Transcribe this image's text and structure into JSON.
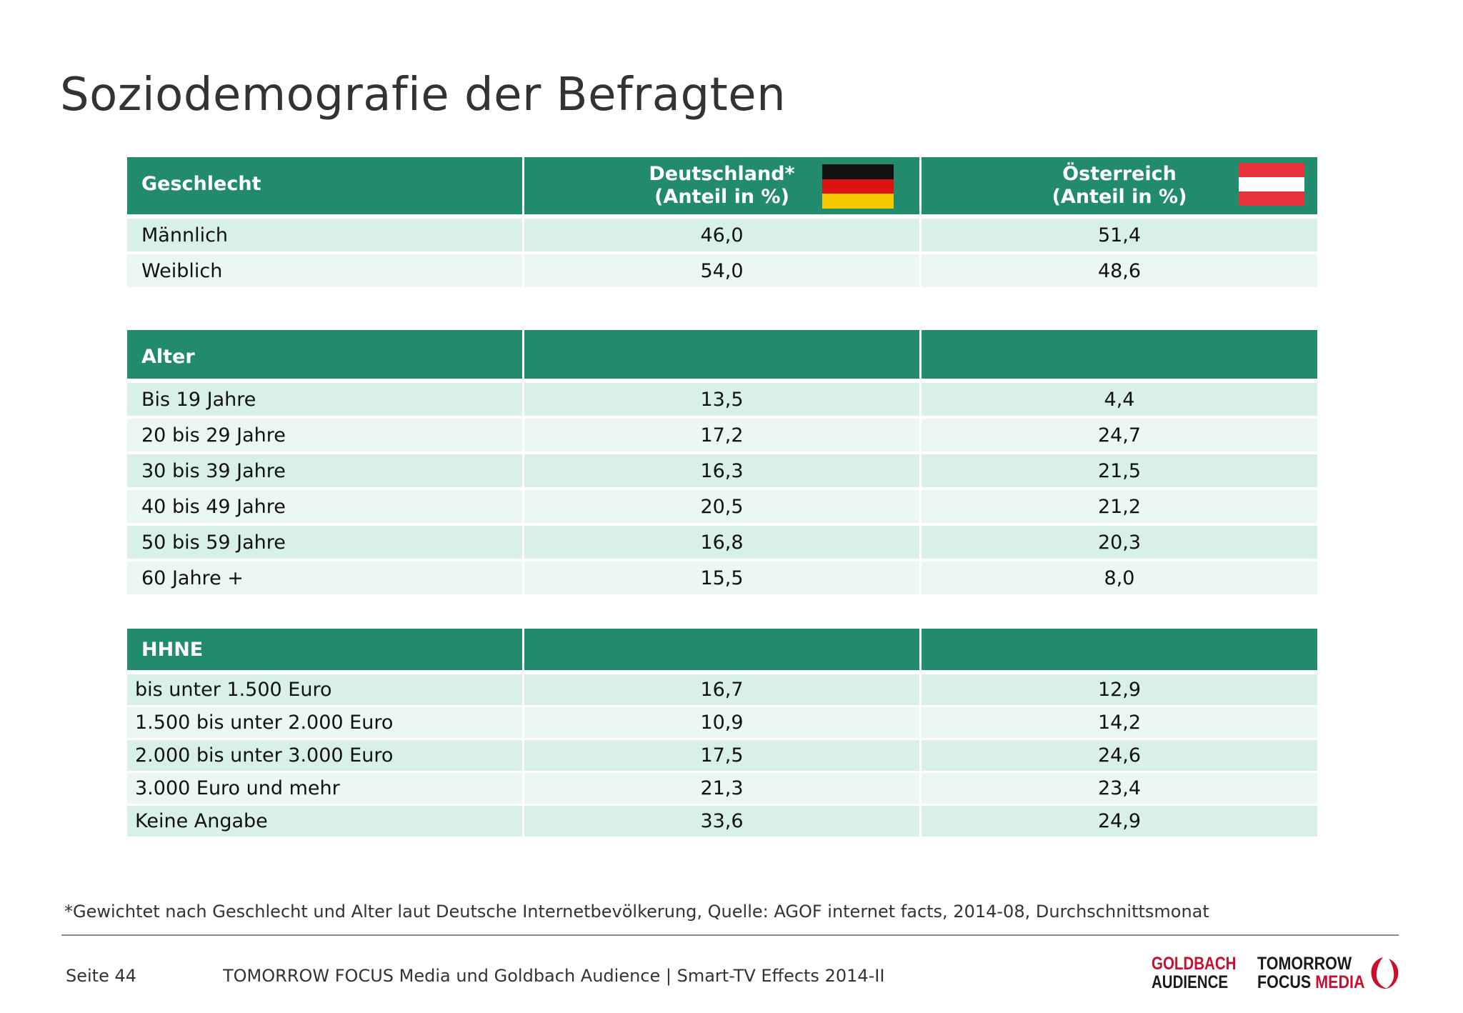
{
  "title": "Soziodemografie der Befragten",
  "colors": {
    "header": "#228b6e",
    "row_a": "#d9f0e6",
    "row_b": "#ebf7f2",
    "accent_red": "#c8102e"
  },
  "columns": {
    "de_line1": "Deutschland*",
    "de_line2": "(Anteil in %)",
    "at_line1": "Österreich",
    "at_line2": "(Anteil in %)"
  },
  "flags": {
    "de": "germany-flag",
    "at": "austria-flag"
  },
  "sections": {
    "gender": {
      "header": "Geschlecht",
      "rows": [
        {
          "label": "Männlich",
          "de": "46,0",
          "at": "51,4"
        },
        {
          "label": "Weiblich",
          "de": "54,0",
          "at": "48,6"
        }
      ]
    },
    "age": {
      "header": "Alter",
      "rows": [
        {
          "label": "Bis 19 Jahre",
          "de": "13,5",
          "at": "4,4"
        },
        {
          "label": "20 bis 29 Jahre",
          "de": "17,2",
          "at": "24,7"
        },
        {
          "label": "30 bis 39 Jahre",
          "de": "16,3",
          "at": "21,5"
        },
        {
          "label": "40 bis 49 Jahre",
          "de": "20,5",
          "at": "21,2"
        },
        {
          "label": "50 bis 59 Jahre",
          "de": "16,8",
          "at": "20,3"
        },
        {
          "label": "60 Jahre +",
          "de": "15,5",
          "at": "8,0"
        }
      ]
    },
    "income": {
      "header": "HHNE",
      "rows": [
        {
          "label": "bis unter 1.500 Euro",
          "de": "16,7",
          "at": "12,9"
        },
        {
          "label": "1.500 bis unter 2.000 Euro",
          "de": "10,9",
          "at": "14,2"
        },
        {
          "label": "2.000 bis unter 3.000 Euro",
          "de": "17,5",
          "at": "24,6"
        },
        {
          "label": "3.000 Euro und mehr",
          "de": "21,3",
          "at": "23,4"
        },
        {
          "label": "Keine Angabe",
          "de": "33,6",
          "at": "24,9"
        }
      ]
    }
  },
  "footnote": "*Gewichtet nach Geschlecht und Alter laut Deutsche Internetbevölkerung, Quelle: AGOF internet facts, 2014-08, Durchschnittsmonat",
  "footer": {
    "page": "Seite 44",
    "source": "TOMORROW FOCUS Media und Goldbach Audience | Smart-TV Effects 2014-II"
  },
  "logos": {
    "goldbach_line1": "GOLDBACH",
    "goldbach_line2": "AUDIENCE",
    "tfm_line1": "TOMORROW",
    "tfm_focus": "FOCUS ",
    "tfm_media": "MEDIA"
  }
}
